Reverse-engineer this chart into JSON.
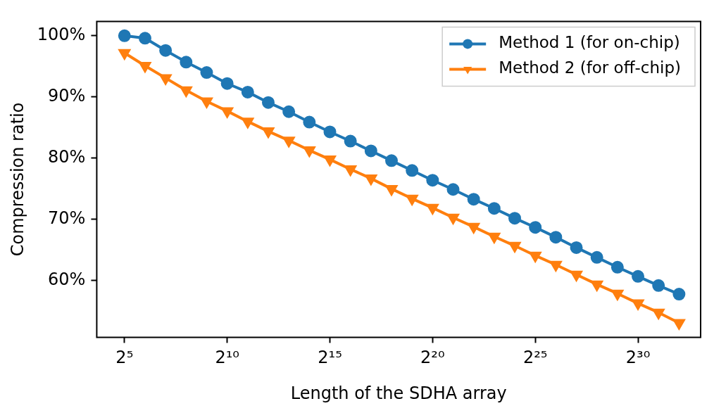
{
  "chart_data": {
    "type": "line",
    "xlabel": "Length of the SDHA array",
    "ylabel": "Compression ratio",
    "x": [
      32,
      64,
      128,
      256,
      512,
      1024,
      2048,
      4096,
      8192,
      16384,
      32768,
      65536,
      131072,
      262144,
      524288,
      1048576,
      2097152,
      4194304,
      8388608,
      16777216,
      33554432,
      67108864,
      134217728,
      268435456,
      536870912,
      1073741824,
      2147483648,
      4294967296
    ],
    "series": [
      {
        "name": "Method 1 (for on-chip)",
        "color": "#1f77b4",
        "marker": "circle",
        "values": [
          100,
          99.6,
          97.6,
          95.7,
          94.0,
          92.2,
          90.8,
          89.1,
          87.6,
          85.9,
          84.3,
          82.8,
          81.2,
          79.6,
          78.0,
          76.4,
          74.9,
          73.3,
          71.8,
          70.2,
          68.7,
          67.1,
          65.4,
          63.8,
          62.2,
          60.7,
          59.2,
          57.8
        ]
      },
      {
        "name": "Method 2 (for off-chip)",
        "color": "#ff7f0e",
        "marker": "triangle",
        "values": [
          97.2,
          95.1,
          93.1,
          91.1,
          89.3,
          87.7,
          86.0,
          84.4,
          82.9,
          81.3,
          79.8,
          78.2,
          76.7,
          75.0,
          73.4,
          71.9,
          70.3,
          68.8,
          67.2,
          65.7,
          64.1,
          62.6,
          61.0,
          59.4,
          57.9,
          56.3,
          54.8,
          53.1
        ]
      }
    ],
    "xlim": [
      12.55,
      8893000000
    ],
    "ylim": [
      50.75,
      102.35
    ],
    "log": "x",
    "xticks": [
      {
        "value": 32,
        "label": "2⁵"
      },
      {
        "value": 1024,
        "label": "2¹⁰"
      },
      {
        "value": 32768,
        "label": "2¹⁵"
      },
      {
        "value": 1048576,
        "label": "2²⁰"
      },
      {
        "value": 33554432,
        "label": "2²⁵"
      },
      {
        "value": 1073741824,
        "label": "2³⁰"
      }
    ],
    "yticks": [
      {
        "value": 60,
        "label": "60%"
      },
      {
        "value": 70,
        "label": "70%"
      },
      {
        "value": 80,
        "label": "80%"
      },
      {
        "value": 90,
        "label": "90%"
      },
      {
        "value": 100,
        "label": "100%"
      }
    ],
    "grid": false,
    "legend": "top right",
    "line_style": "solid"
  }
}
